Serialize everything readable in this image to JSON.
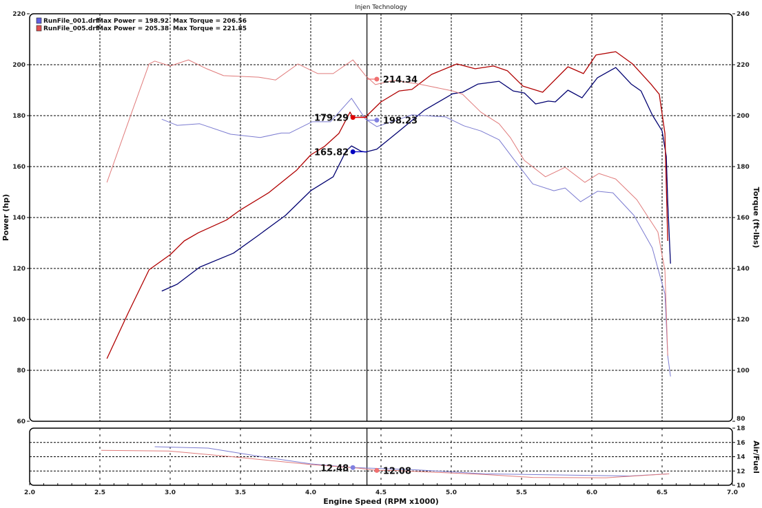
{
  "chart_data": [
    {
      "type": "line",
      "title": "Injen Technology",
      "xlabel": "Engine Speed (RPM x1000)",
      "ylabel": "Power (hp)",
      "y2label": "Torque (ft-lbs)",
      "xlim": [
        2.0,
        7.0
      ],
      "ylim": [
        60,
        220
      ],
      "y2lim": [
        80,
        240
      ],
      "xticks": [
        "2.0",
        "2.5",
        "3.0",
        "3.5",
        "4.0",
        "4.5",
        "5.0",
        "5.5",
        "6.0",
        "6.5",
        "7.0"
      ],
      "yticks": [
        "60",
        "80",
        "100",
        "120",
        "140",
        "160",
        "180",
        "200",
        "220"
      ],
      "y2ticks": [
        "80",
        "100",
        "120",
        "140",
        "160",
        "180",
        "200",
        "220",
        "240"
      ],
      "grid": true,
      "legend_position": "top-left",
      "legend": [
        {
          "file": "RunFile_001.drf",
          "max_power": "Max Power = 198.92",
          "max_torque": "Max Torque = 206.56",
          "color": "#6060e0"
        },
        {
          "file": "RunFile_005.drf",
          "max_power": "Max Power = 205.38",
          "max_torque": "Max Torque = 221.85",
          "color": "#e05050"
        }
      ],
      "cursor_rpm": 4.4,
      "series": [
        {
          "run": "RunFile_001.drf",
          "quantity": "power",
          "axis": "left",
          "color": "#000070",
          "x": [
            2.94,
            3.05,
            3.21,
            3.45,
            3.62,
            3.82,
            4.0,
            4.16,
            4.25,
            4.29,
            4.36,
            4.39,
            4.47,
            4.63,
            4.81,
            5.01,
            5.08,
            5.19,
            5.34,
            5.44,
            5.52,
            5.6,
            5.69,
            5.74,
            5.83,
            5.93,
            6.04,
            6.17,
            6.28,
            6.35,
            6.43,
            6.5,
            6.53,
            6.54,
            6.56
          ],
          "y": [
            111.1,
            113.8,
            120.5,
            126,
            132.7,
            140.8,
            150.5,
            156,
            166,
            168.1,
            166,
            165.7,
            166.8,
            174,
            182.2,
            188.6,
            189.2,
            192.4,
            193.5,
            189.7,
            188.9,
            184.6,
            185.7,
            185.4,
            190,
            187,
            194.9,
            198.9,
            192.4,
            189.7,
            180.3,
            174,
            164,
            146,
            121.9
          ]
        },
        {
          "run": "RunFile_005.drf",
          "quantity": "power",
          "axis": "left",
          "color": "#b00000",
          "x": [
            2.55,
            2.7,
            2.85,
            3.0,
            3.1,
            3.2,
            3.4,
            3.5,
            3.7,
            3.9,
            4.0,
            4.1,
            4.2,
            4.28,
            4.3,
            4.39,
            4.5,
            4.63,
            4.72,
            4.86,
            5.04,
            5.17,
            5.3,
            5.4,
            5.51,
            5.65,
            5.83,
            5.94,
            6.03,
            6.17,
            6.29,
            6.42,
            6.48,
            6.52,
            6.54
          ],
          "y": [
            84.6,
            102.4,
            119.5,
            125.4,
            130.8,
            134,
            139,
            143,
            149.7,
            158.6,
            164.6,
            168,
            173,
            181.4,
            179.3,
            179.5,
            185.4,
            189.7,
            190.3,
            196.2,
            200.3,
            198.4,
            199.5,
            197.6,
            191.6,
            189.2,
            199.2,
            196.5,
            203.8,
            205.1,
            200.3,
            192.4,
            188.4,
            173,
            130.8
          ]
        },
        {
          "run": "RunFile_001.drf",
          "quantity": "torque",
          "axis": "right",
          "color": "#7a7ad0",
          "x": [
            2.94,
            3.05,
            3.21,
            3.43,
            3.64,
            3.79,
            3.85,
            4.01,
            4.14,
            4.29,
            4.39,
            4.47,
            4.63,
            4.72,
            4.96,
            5.09,
            5.21,
            5.34,
            5.44,
            5.58,
            5.73,
            5.81,
            5.92,
            6.04,
            6.15,
            6.3,
            6.43,
            6.52,
            6.54,
            6.56
          ],
          "y": [
            198.6,
            196.2,
            196.8,
            192.7,
            191.4,
            193.2,
            193.2,
            197.6,
            197.6,
            206.8,
            198.6,
            195.7,
            198.6,
            200.3,
            199.5,
            196,
            194,
            190.5,
            183.2,
            173.2,
            170.5,
            171.6,
            166.2,
            170.3,
            169.7,
            160.8,
            148.1,
            130,
            105.7,
            97.6
          ]
        },
        {
          "run": "RunFile_005.drf",
          "quantity": "torque",
          "axis": "right",
          "color": "#e07a7a",
          "x": [
            2.55,
            2.72,
            2.85,
            2.89,
            3.0,
            3.13,
            3.26,
            3.38,
            3.63,
            3.75,
            3.91,
            4.05,
            4.16,
            4.3,
            4.39,
            4.46,
            4.59,
            4.77,
            5.01,
            5.08,
            5.21,
            5.34,
            5.42,
            5.52,
            5.67,
            5.81,
            5.95,
            6.05,
            6.17,
            6.32,
            6.47,
            6.52,
            6.54
          ],
          "y": [
            173.8,
            200.3,
            220.3,
            221.4,
            219.5,
            221.9,
            218.4,
            215.7,
            215.1,
            214,
            220.3,
            216.5,
            216.5,
            221.9,
            215.7,
            212.2,
            213.8,
            212.4,
            209.7,
            208.4,
            201.4,
            196.8,
            191.4,
            182.4,
            176,
            179.7,
            173.8,
            177.3,
            175.1,
            167,
            154.3,
            139.2,
            105.7
          ]
        }
      ],
      "markers": [
        {
          "series": 1,
          "x": 4.3,
          "y": 179.29,
          "label": "179.29",
          "color": "#e00000",
          "label_side": "left"
        },
        {
          "series": 0,
          "x": 4.3,
          "y": 165.82,
          "label": "165.82",
          "color": "#0000c0",
          "label_side": "left"
        },
        {
          "series": 3,
          "x": 4.47,
          "y": 214.34,
          "label": "214.34",
          "color": "#f07070",
          "label_side": "right"
        },
        {
          "series": 2,
          "x": 4.47,
          "y": 198.23,
          "label": "198.23",
          "color": "#8080e0",
          "label_side": "right"
        }
      ]
    },
    {
      "type": "line",
      "xlabel": "Engine Speed (RPM x1000)",
      "y2label": "Air/Fuel",
      "xlim": [
        2.0,
        7.0
      ],
      "y2lim": [
        10,
        18
      ],
      "y2ticks": [
        "10",
        "12",
        "14",
        "16",
        "18"
      ],
      "grid": true,
      "series": [
        {
          "run": "RunFile_001.drf",
          "quantity": "air_fuel",
          "color": "#7a7ad0",
          "x": [
            2.89,
            3.27,
            3.62,
            4.0,
            4.3,
            4.72,
            5.24,
            5.93,
            6.27,
            6.55
          ],
          "y": [
            15.4,
            15.2,
            14.1,
            13.0,
            12.48,
            12.2,
            11.6,
            11.4,
            11.3,
            11.6
          ]
        },
        {
          "run": "RunFile_005.drf",
          "quantity": "air_fuel",
          "color": "#e07a7a",
          "x": [
            2.51,
            2.99,
            3.44,
            4.0,
            4.34,
            4.47,
            4.57,
            5.24,
            5.58,
            6.1,
            6.55
          ],
          "y": [
            14.9,
            14.8,
            14.0,
            12.9,
            12.4,
            12.08,
            12.1,
            11.5,
            11.1,
            11.05,
            11.6
          ]
        }
      ],
      "markers": [
        {
          "series": 0,
          "x": 4.3,
          "y": 12.48,
          "label": "12.48",
          "color": "#8080e0",
          "label_side": "left"
        },
        {
          "series": 1,
          "x": 4.47,
          "y": 12.08,
          "label": "12.08",
          "color": "#f07070",
          "label_side": "right"
        }
      ]
    }
  ]
}
